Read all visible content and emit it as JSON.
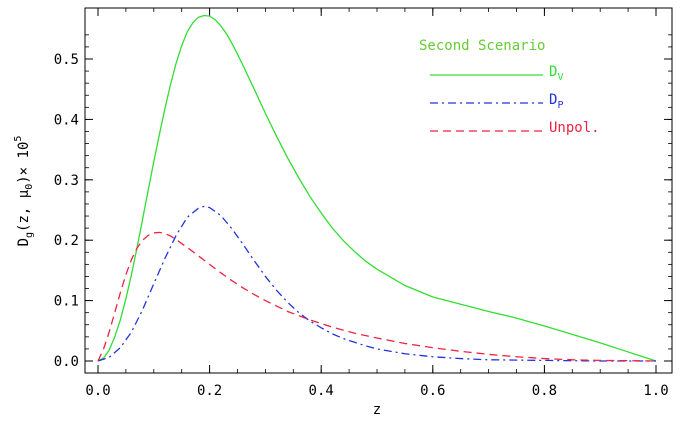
{
  "chart_data": {
    "type": "line",
    "title": "",
    "xlabel": "z",
    "ylabel_parts": {
      "base": "D",
      "sub": "g",
      "args": "(z, ",
      "mu": "μ",
      "mu_sub": "0",
      "close": ")",
      "times": "× 10",
      "exp": "5"
    },
    "xlim": [
      0.0,
      1.0
    ],
    "ylim": [
      0.0,
      0.58
    ],
    "xticks": [
      {
        "value": 0.0,
        "label": "0.0"
      },
      {
        "value": 0.2,
        "label": "0.2"
      },
      {
        "value": 0.4,
        "label": "0.4"
      },
      {
        "value": 0.6,
        "label": "0.6"
      },
      {
        "value": 0.8,
        "label": "0.8"
      },
      {
        "value": 1.0,
        "label": "1.0"
      }
    ],
    "yticks": [
      {
        "value": 0.0,
        "label": "0.0"
      },
      {
        "value": 0.1,
        "label": "0.1"
      },
      {
        "value": 0.2,
        "label": "0.2"
      },
      {
        "value": 0.3,
        "label": "0.3"
      },
      {
        "value": 0.4,
        "label": "0.4"
      },
      {
        "value": 0.5,
        "label": "0.5"
      }
    ],
    "grid": false,
    "legend": {
      "title": "Second Scenario",
      "title_color": "#66cc33",
      "placement": "top-right"
    },
    "series": [
      {
        "key": "dv",
        "name_base": "D",
        "name_sub": "V",
        "color": "#33dd33",
        "dash": "solid",
        "x": [
          0.0,
          0.01,
          0.02,
          0.03,
          0.04,
          0.05,
          0.06,
          0.07,
          0.08,
          0.09,
          0.1,
          0.11,
          0.12,
          0.13,
          0.14,
          0.15,
          0.16,
          0.17,
          0.18,
          0.19,
          0.2,
          0.21,
          0.22,
          0.23,
          0.24,
          0.25,
          0.26,
          0.28,
          0.3,
          0.32,
          0.34,
          0.36,
          0.38,
          0.4,
          0.42,
          0.44,
          0.46,
          0.48,
          0.5,
          0.55,
          0.6,
          0.65,
          0.7,
          0.75,
          0.8,
          0.85,
          0.9,
          0.95,
          1.0
        ],
        "y": [
          0.0,
          0.005,
          0.018,
          0.04,
          0.068,
          0.103,
          0.143,
          0.188,
          0.235,
          0.283,
          0.33,
          0.375,
          0.418,
          0.458,
          0.493,
          0.522,
          0.545,
          0.56,
          0.569,
          0.572,
          0.571,
          0.565,
          0.555,
          0.542,
          0.526,
          0.508,
          0.489,
          0.45,
          0.41,
          0.372,
          0.336,
          0.303,
          0.272,
          0.245,
          0.22,
          0.199,
          0.181,
          0.165,
          0.152,
          0.125,
          0.106,
          0.094,
          0.082,
          0.071,
          0.058,
          0.044,
          0.03,
          0.015,
          0.0
        ]
      },
      {
        "key": "dp",
        "name_base": "D",
        "name_sub": "P",
        "color": "#2233dd",
        "dash": "dashdot",
        "x": [
          0.0,
          0.02,
          0.04,
          0.06,
          0.08,
          0.1,
          0.12,
          0.14,
          0.16,
          0.18,
          0.19,
          0.2,
          0.22,
          0.24,
          0.26,
          0.28,
          0.3,
          0.32,
          0.34,
          0.36,
          0.38,
          0.4,
          0.42,
          0.44,
          0.46,
          0.48,
          0.5,
          0.55,
          0.6,
          0.65,
          0.7,
          0.8,
          0.9,
          1.0
        ],
        "y": [
          0.0,
          0.006,
          0.022,
          0.048,
          0.085,
          0.128,
          0.17,
          0.208,
          0.238,
          0.253,
          0.256,
          0.254,
          0.241,
          0.219,
          0.193,
          0.166,
          0.14,
          0.117,
          0.097,
          0.08,
          0.066,
          0.055,
          0.045,
          0.037,
          0.031,
          0.025,
          0.02,
          0.012,
          0.007,
          0.004,
          0.002,
          0.001,
          0.0,
          0.0
        ]
      },
      {
        "key": "unpol",
        "name_base": "Unpol.",
        "name_sub": "",
        "color": "#ee2244",
        "dash": "dashed",
        "x": [
          0.0,
          0.01,
          0.02,
          0.03,
          0.04,
          0.05,
          0.06,
          0.07,
          0.08,
          0.09,
          0.1,
          0.11,
          0.12,
          0.13,
          0.14,
          0.16,
          0.18,
          0.2,
          0.22,
          0.24,
          0.26,
          0.28,
          0.3,
          0.32,
          0.34,
          0.36,
          0.38,
          0.4,
          0.42,
          0.44,
          0.46,
          0.48,
          0.5,
          0.55,
          0.6,
          0.65,
          0.7,
          0.75,
          0.8,
          0.85,
          0.9,
          1.0
        ],
        "y": [
          0.0,
          0.02,
          0.048,
          0.08,
          0.113,
          0.143,
          0.168,
          0.187,
          0.2,
          0.208,
          0.212,
          0.213,
          0.211,
          0.207,
          0.201,
          0.188,
          0.174,
          0.16,
          0.146,
          0.133,
          0.121,
          0.11,
          0.1,
          0.091,
          0.082,
          0.075,
          0.068,
          0.062,
          0.056,
          0.051,
          0.046,
          0.042,
          0.038,
          0.029,
          0.022,
          0.016,
          0.011,
          0.007,
          0.004,
          0.002,
          0.001,
          0.0
        ]
      }
    ]
  }
}
